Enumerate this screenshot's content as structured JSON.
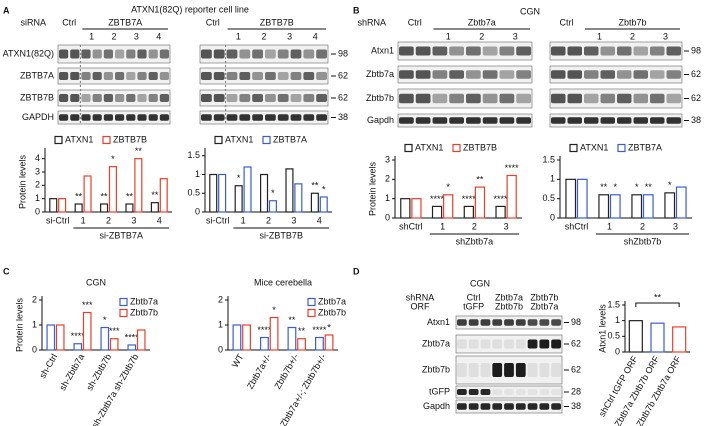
{
  "panels": [
    {
      "letter": "A",
      "title": "ATXN1(82Q) reporter cell line",
      "row_header": "siRNA",
      "blots": [
        {
          "ctrl": "Ctrl",
          "target": "ZBTB7A",
          "lanes": [
            "1",
            "2",
            "3",
            "4"
          ]
        },
        {
          "ctrl": "Ctrl",
          "target": "ZBTB7B",
          "lanes": [
            "1",
            "2",
            "3",
            "4"
          ]
        }
      ],
      "rows": [
        "ATXN1(82Q)",
        "ZBTB7A",
        "ZBTB7B",
        "GAPDH"
      ],
      "markers": [
        98,
        62,
        62,
        38
      ]
    },
    {
      "letter": "B",
      "title": "CGN",
      "row_header": "shRNA",
      "blots": [
        {
          "ctrl": "Ctrl",
          "target": "Zbtb7a",
          "lanes": [
            "1",
            "2",
            "3"
          ]
        },
        {
          "ctrl": "Ctrl",
          "target": "Zbtb7b",
          "lanes": [
            "1",
            "2",
            "3"
          ]
        }
      ],
      "rows": [
        "Atxn1",
        "Zbtb7a",
        "Zbtb7b",
        "Gapdh"
      ],
      "markers": [
        98,
        62,
        62,
        38
      ]
    },
    {
      "letter": "C"
    },
    {
      "letter": "D",
      "title": "CGN",
      "row_header": [
        "shRNA",
        "ORF"
      ],
      "lanes": [
        [
          "Ctrl",
          "tGFP"
        ],
        [
          "Zbtb7a",
          "Zbtb7b"
        ],
        [
          "Zbtb7b",
          "Zbtb7a"
        ]
      ],
      "rows": [
        "Atxn1",
        "Zbtb7a",
        "Zbtb7b",
        "tGFP",
        "Gapdh"
      ],
      "markers": [
        98,
        62,
        62,
        28,
        38
      ]
    }
  ],
  "chart_data": [
    {
      "type": "bar",
      "ylabel": "Protein levels",
      "xlabel": "si-ZBTB7A",
      "legend": "top",
      "categories": [
        "si-Ctrl",
        "1",
        "2",
        "3",
        "4"
      ],
      "series": [
        {
          "name": "ATXN1",
          "color": "#222222",
          "values": [
            1,
            0.6,
            0.6,
            0.6,
            0.7
          ],
          "annotations": [
            null,
            "**",
            "**",
            "**",
            "**"
          ]
        },
        {
          "name": "ZBTB7B",
          "color": "#e8412b",
          "values": [
            1,
            2.7,
            3.4,
            4.0,
            2.5
          ],
          "annotations": [
            null,
            null,
            "*",
            "**",
            null
          ]
        }
      ],
      "ylim": [
        0,
        4.5
      ],
      "yticks": [
        0,
        1,
        2,
        3,
        4
      ]
    },
    {
      "type": "bar",
      "xlabel": "si-ZBTB7B",
      "legend": "top",
      "categories": [
        "si-Ctrl",
        "1",
        "2",
        "3",
        "4"
      ],
      "series": [
        {
          "name": "ATXN1",
          "color": "#222222",
          "values": [
            1,
            0.7,
            1,
            1.15,
            0.5
          ],
          "annotations": [
            null,
            "*",
            null,
            null,
            "**"
          ]
        },
        {
          "name": "ZBTB7A",
          "color": "#3a5fcd",
          "values": [
            1,
            1.2,
            0.3,
            0.75,
            0.4
          ],
          "annotations": [
            null,
            null,
            "*",
            null,
            "*"
          ]
        }
      ],
      "ylim": [
        0,
        1.6
      ],
      "yticks": [
        0,
        0.5,
        1,
        1.5
      ]
    },
    {
      "type": "bar",
      "ylabel": "Protein levels",
      "xlabel": "shZbtb7a",
      "legend": "top",
      "categories": [
        "shCtrl",
        "1",
        "2",
        "3"
      ],
      "series": [
        {
          "name": "ATXN1",
          "color": "#222222",
          "values": [
            1,
            0.6,
            0.6,
            0.6
          ],
          "annotations": [
            null,
            "****",
            "****",
            "****"
          ]
        },
        {
          "name": "ZBTB7B",
          "color": "#e8412b",
          "values": [
            1,
            1.2,
            1.6,
            2.2
          ],
          "annotations": [
            null,
            "*",
            "**",
            "****"
          ]
        }
      ],
      "ylim": [
        0,
        3
      ],
      "yticks": [
        0,
        1,
        2,
        3
      ]
    },
    {
      "type": "bar",
      "xlabel": "shZbtb7b",
      "legend": "top",
      "categories": [
        "shCtrl",
        "1",
        "2",
        "3"
      ],
      "series": [
        {
          "name": "ATXN1",
          "color": "#222222",
          "values": [
            1,
            0.6,
            0.6,
            0.65
          ],
          "annotations": [
            null,
            "**",
            "*",
            "*"
          ]
        },
        {
          "name": "ZBTB7A",
          "color": "#3a5fcd",
          "values": [
            1,
            0.6,
            0.6,
            0.8
          ],
          "annotations": [
            null,
            "*",
            "**",
            null
          ]
        }
      ],
      "ylim": [
        0,
        1.5
      ],
      "yticks": [
        0,
        0.5,
        1,
        1.5
      ]
    },
    {
      "type": "bar",
      "title": "CGN",
      "ylabel": "Protein levels",
      "legend": "upper right",
      "categories": [
        "sh-Ctrl",
        "sh-Zbtb7a",
        "sh-Zbtb7b",
        "sh-Zbtb7a sh-Zbtb7b"
      ],
      "series": [
        {
          "name": "Zbtb7a",
          "color": "#3a5fcd",
          "values": [
            1,
            0.25,
            0.9,
            0.2
          ],
          "annotations": [
            null,
            "****",
            "*",
            "****"
          ]
        },
        {
          "name": "Zbtb7b",
          "color": "#e8412b",
          "values": [
            1,
            1.5,
            0.45,
            0.8
          ],
          "annotations": [
            null,
            "***",
            "***",
            null
          ]
        }
      ],
      "ylim": [
        0,
        2
      ],
      "yticks": [
        0,
        1,
        2
      ]
    },
    {
      "type": "bar",
      "title": "Mice cerebella",
      "legend": "upper right",
      "categories": [
        "WT",
        "Zbtb7a+/-",
        "Zbtb7b+/-",
        "Zbtb7a+/-; Zbtb7b+/-"
      ],
      "series": [
        {
          "name": "Zbtb7a",
          "color": "#3a5fcd",
          "values": [
            1,
            0.5,
            0.9,
            0.5
          ],
          "annotations": [
            null,
            "****",
            "**",
            "****"
          ]
        },
        {
          "name": "Zbtb7b",
          "color": "#e8412b",
          "values": [
            1,
            1.3,
            0.45,
            0.6
          ],
          "annotations": [
            null,
            "*",
            "**",
            "*"
          ]
        }
      ],
      "ylim": [
        0,
        2
      ],
      "yticks": [
        0,
        1,
        2
      ]
    },
    {
      "type": "bar",
      "ylabel": "Atxn1 levels",
      "annotation": "**",
      "categories": [
        "shCtrl tGFP ORF",
        "shZbtb7a Zbtb7b ORF",
        "shZbtb7b Zbtb7a ORF"
      ],
      "values": [
        1,
        0.92,
        0.8
      ],
      "colors": [
        "#222222",
        "#3a5fcd",
        "#e8412b"
      ],
      "ylim": [
        0,
        1.5
      ],
      "yticks": [
        0,
        0.5,
        1,
        1.5
      ]
    }
  ]
}
